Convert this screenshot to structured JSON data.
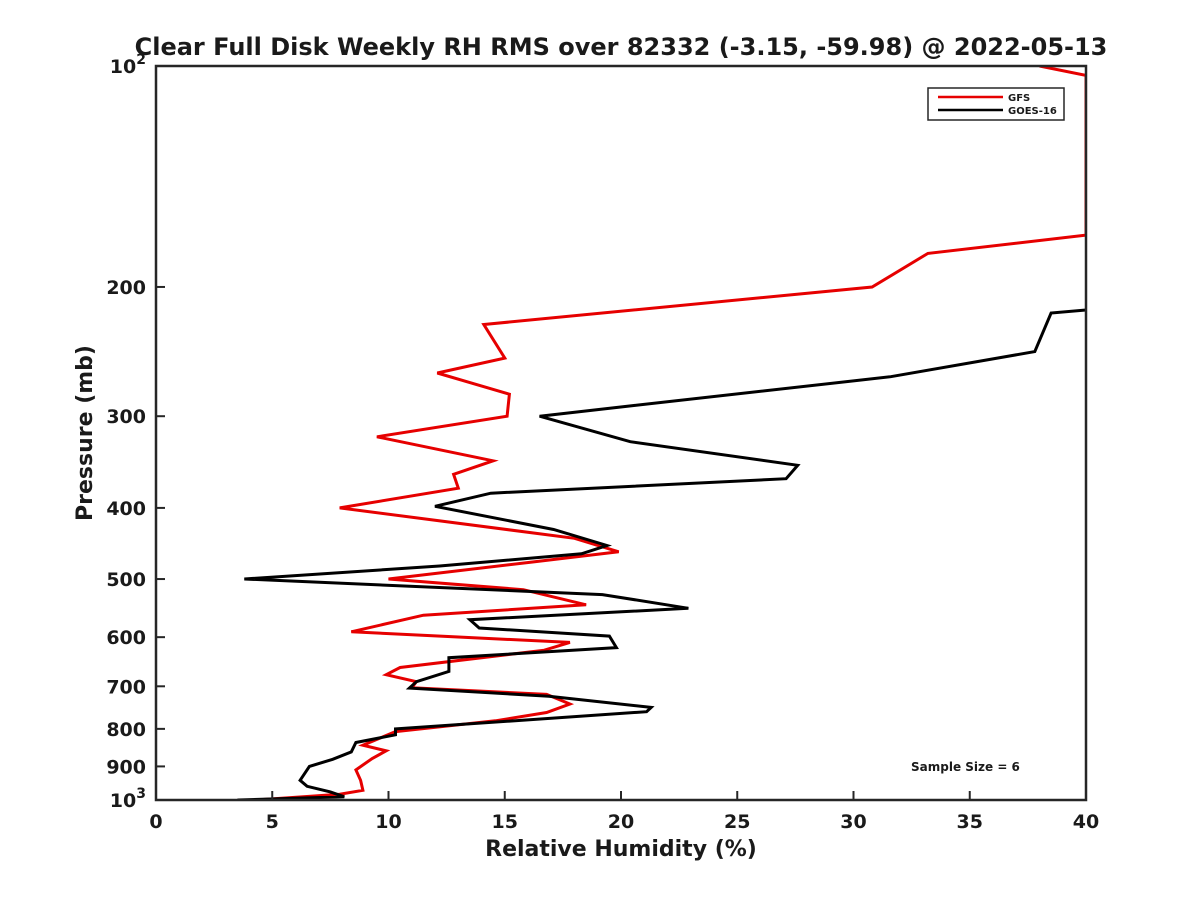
{
  "chart_data": {
    "type": "line",
    "title": "Clear Full Disk Weekly RH RMS over 82332 (-3.15, -59.98) @ 2022-05-13",
    "xlabel": "Relative Humidity (%)",
    "ylabel": "Pressure (mb)",
    "xlim": [
      0,
      40
    ],
    "ylim": [
      100,
      1000
    ],
    "yscale": "log",
    "y_reversed": true,
    "grid": false,
    "legend_position": "top-right",
    "x_ticks": [
      0,
      5,
      10,
      15,
      20,
      25,
      30,
      35,
      40
    ],
    "x_tick_labels": [
      "0",
      "5",
      "10",
      "15",
      "20",
      "25",
      "30",
      "35",
      "40"
    ],
    "y_ticks": [
      100,
      200,
      300,
      400,
      500,
      600,
      700,
      800,
      900,
      1000
    ],
    "y_tick_labels": [
      {
        "base": "10",
        "exp": "2"
      },
      {
        "base": "200",
        "exp": ""
      },
      {
        "base": "300",
        "exp": ""
      },
      {
        "base": "400",
        "exp": ""
      },
      {
        "base": "500",
        "exp": ""
      },
      {
        "base": "600",
        "exp": ""
      },
      {
        "base": "700",
        "exp": ""
      },
      {
        "base": "800",
        "exp": ""
      },
      {
        "base": "900",
        "exp": ""
      },
      {
        "base": "10",
        "exp": "3"
      }
    ],
    "annotation": "Sample Size = 6",
    "series": [
      {
        "name": "GFS",
        "color": "#e60000",
        "points": [
          [
            38,
            100
          ],
          [
            40,
            103
          ],
          [
            40,
            170
          ],
          [
            33.2,
            180
          ],
          [
            30.8,
            200
          ],
          [
            14.1,
            225
          ],
          [
            15,
            250
          ],
          [
            12.1,
            262
          ],
          [
            15.2,
            280
          ],
          [
            15.1,
            300
          ],
          [
            9.5,
            320
          ],
          [
            14.5,
            345
          ],
          [
            12.8,
            360
          ],
          [
            13.0,
            376
          ],
          [
            7.9,
            400
          ],
          [
            18.0,
            440
          ],
          [
            19.9,
            459
          ],
          [
            16.2,
            474
          ],
          [
            10.0,
            500
          ],
          [
            15.8,
            517
          ],
          [
            18.5,
            542
          ],
          [
            11.5,
            560
          ],
          [
            8.4,
            590
          ],
          [
            17.8,
            610
          ],
          [
            16.7,
            625
          ],
          [
            10.5,
            660
          ],
          [
            9.9,
            675
          ],
          [
            11.2,
            690
          ],
          [
            11.0,
            703
          ],
          [
            16.8,
            718
          ],
          [
            17.8,
            740
          ],
          [
            16.8,
            760
          ],
          [
            14.6,
            780
          ],
          [
            10.3,
            807
          ],
          [
            8.9,
            842
          ],
          [
            9.9,
            857
          ],
          [
            9.3,
            878
          ],
          [
            8.6,
            910
          ],
          [
            8.8,
            940
          ],
          [
            8.9,
            970
          ],
          [
            7.9,
            982
          ],
          [
            4.3,
            1000
          ]
        ]
      },
      {
        "name": "GOES-16",
        "color": "#000000",
        "points": [
          [
            40,
            215
          ],
          [
            38.5,
            217
          ],
          [
            37.8,
            245
          ],
          [
            31.6,
            265
          ],
          [
            20.6,
            290
          ],
          [
            16.5,
            300
          ],
          [
            20.4,
            325
          ],
          [
            27.6,
            350
          ],
          [
            27.1,
            365
          ],
          [
            14.4,
            382
          ],
          [
            12.0,
            398
          ],
          [
            17.1,
            428
          ],
          [
            19.4,
            450
          ],
          [
            18.3,
            462
          ],
          [
            12.2,
            480
          ],
          [
            3.8,
            500
          ],
          [
            19.2,
            525
          ],
          [
            22.9,
            548
          ],
          [
            13.5,
            568
          ],
          [
            13.9,
            583
          ],
          [
            19.5,
            598
          ],
          [
            19.8,
            620
          ],
          [
            12.6,
            640
          ],
          [
            12.6,
            668
          ],
          [
            11.2,
            690
          ],
          [
            10.9,
            704
          ],
          [
            16.9,
            722
          ],
          [
            21.3,
            748
          ],
          [
            21.1,
            758
          ],
          [
            10.3,
            800
          ],
          [
            10.3,
            815
          ],
          [
            8.6,
            835
          ],
          [
            8.4,
            860
          ],
          [
            7.6,
            880
          ],
          [
            6.6,
            900
          ],
          [
            6.2,
            940
          ],
          [
            6.5,
            958
          ],
          [
            7.5,
            975
          ],
          [
            8.1,
            990
          ],
          [
            3.5,
            1000
          ]
        ]
      }
    ]
  }
}
